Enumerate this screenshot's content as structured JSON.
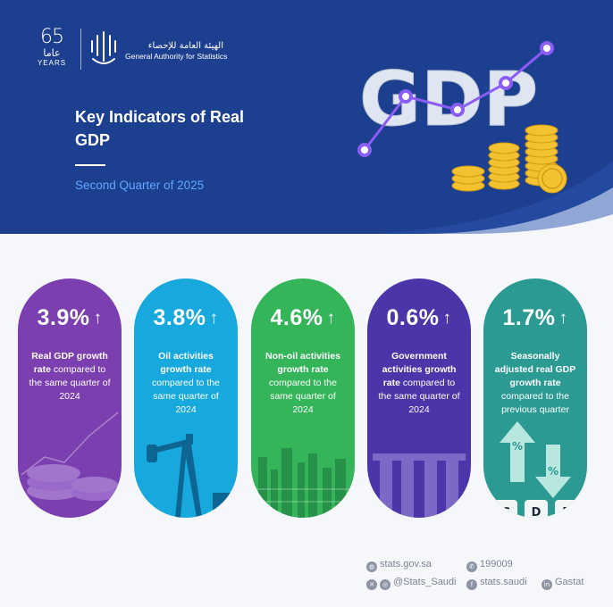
{
  "branding": {
    "anniversary_number": "65",
    "anniversary_arabic": "عاما",
    "anniversary_years": "YEARS",
    "org_name_ar": "الهيئة العامة للإحصاء",
    "org_name_en": "General Authority for Statistics"
  },
  "header": {
    "title": "Key Indicators of Real GDP",
    "subtitle": "Second Quarter of 2025",
    "art_text": "GDP"
  },
  "cards": [
    {
      "value": "3.9%",
      "arrow": "↑",
      "bold": "Real GDP growth rate",
      "rest": " compared to the same quarter of 2024",
      "color": "#7b3fb0"
    },
    {
      "value": "3.8%",
      "arrow": "↑",
      "bold": "Oil activities growth rate",
      "rest": " compared to the same quarter of 2024",
      "color": "#17a8dd"
    },
    {
      "value": "4.6%",
      "arrow": "↑",
      "bold": "Non-oil activities growth rate",
      "rest": " compared to the same quarter of 2024",
      "color": "#34b55a"
    },
    {
      "value": "0.6%",
      "arrow": "↑",
      "bold": "Government activities growth rate",
      "rest": " compared to the same quarter of 2024",
      "color": "#4b35a8"
    },
    {
      "value": "1.7%",
      "arrow": "↑",
      "bold": "Seasonally adjusted real GDP growth rate",
      "rest": " compared to the previous quarter",
      "color": "#2a9a93"
    }
  ],
  "card_decor": {
    "percent_sign": "%",
    "letters": [
      "G",
      "D",
      "P"
    ]
  },
  "footer": {
    "website": "stats.gov.sa",
    "phone": "199009",
    "social": "@Stats_Saudi",
    "facebook": "stats.saudi",
    "linkedin": "Gastat"
  },
  "colors": {
    "header_bg": "#1d3f8f",
    "accent_blue": "#5fa8ff",
    "line_purple": "#8b5cf6",
    "coin_gold": "#f2c230"
  }
}
